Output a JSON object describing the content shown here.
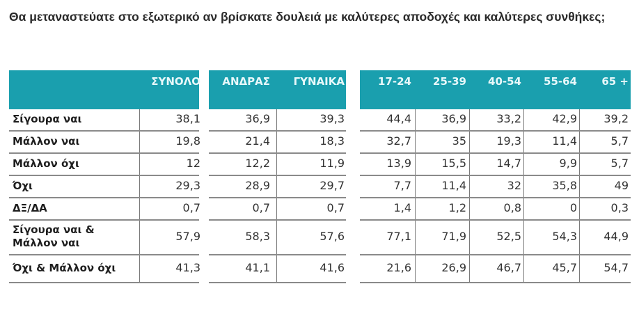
{
  "title": "Θα μεταναστεύατε στο εξωτερικό αν βρίσκατε δουλειά με καλύτερες αποδοχές και καλύτερες συνθήκες;",
  "header_color": "#1a9fae",
  "columns": [
    "ΣΥΝΟΛΟ",
    "ΑΝΔΡΑΣ",
    "ΓΥΝΑΙΚΑ",
    "17-24",
    "25-39",
    "40-54",
    "55-64",
    "65 +"
  ],
  "rows": [
    {
      "label": "Σίγουρα ναι",
      "values": [
        "38,1",
        "36,9",
        "39,3",
        "44,4",
        "36,9",
        "33,2",
        "42,9",
        "39,2"
      ]
    },
    {
      "label": "Μάλλον ναι",
      "values": [
        "19,8",
        "21,4",
        "18,3",
        "32,7",
        "35",
        "19,3",
        "11,4",
        "5,7"
      ]
    },
    {
      "label": "Μάλλον όχι",
      "values": [
        "12",
        "12,2",
        "11,9",
        "13,9",
        "15,5",
        "14,7",
        "9,9",
        "5,7"
      ]
    },
    {
      "label": "Όχι",
      "values": [
        "29,3",
        "28,9",
        "29,7",
        "7,7",
        "11,4",
        "32",
        "35,8",
        "49"
      ]
    },
    {
      "label": "ΔΞ/ΔΑ",
      "values": [
        "0,7",
        "0,7",
        "0,7",
        "1,4",
        "1,2",
        "0,8",
        "0",
        "0,3"
      ]
    },
    {
      "label": "Σίγουρα ναι & Μάλλον ναι",
      "values": [
        "57,9",
        "58,3",
        "57,6",
        "77,1",
        "71,9",
        "52,5",
        "54,3",
        "44,9"
      ]
    },
    {
      "label": "Όχι & Μάλλον όχι",
      "values": [
        "41,3",
        "41,1",
        "41,6",
        "21,6",
        "26,9",
        "46,7",
        "45,7",
        "54,7"
      ]
    }
  ],
  "chart_data": {
    "type": "table",
    "title": "Θα μεταναστεύατε στο εξωτερικό αν βρίσκατε δουλειά με καλύτερες αποδοχές και καλύτερες συνθήκες;",
    "columns": [
      "ΣΥΝΟΛΟ",
      "ΑΝΔΡΑΣ",
      "ΓΥΝΑΙΚΑ",
      "17-24",
      "25-39",
      "40-54",
      "55-64",
      "65 +"
    ],
    "categories": [
      "Σίγουρα ναι",
      "Μάλλον ναι",
      "Μάλλον όχι",
      "Όχι",
      "ΔΞ/ΔΑ",
      "Σίγουρα ναι & Μάλλον ναι",
      "Όχι & Μάλλον όχι"
    ],
    "series": [
      {
        "name": "ΣΥΝΟΛΟ",
        "values": [
          38.1,
          19.8,
          12,
          29.3,
          0.7,
          57.9,
          41.3
        ]
      },
      {
        "name": "ΑΝΔΡΑΣ",
        "values": [
          36.9,
          21.4,
          12.2,
          28.9,
          0.7,
          58.3,
          41.1
        ]
      },
      {
        "name": "ΓΥΝΑΙΚΑ",
        "values": [
          39.3,
          18.3,
          11.9,
          29.7,
          0.7,
          57.6,
          41.6
        ]
      },
      {
        "name": "17-24",
        "values": [
          44.4,
          32.7,
          13.9,
          7.7,
          1.4,
          77.1,
          21.6
        ]
      },
      {
        "name": "25-39",
        "values": [
          36.9,
          35,
          15.5,
          11.4,
          1.2,
          71.9,
          26.9
        ]
      },
      {
        "name": "40-54",
        "values": [
          33.2,
          19.3,
          14.7,
          32,
          0.8,
          52.5,
          46.7
        ]
      },
      {
        "name": "55-64",
        "values": [
          42.9,
          11.4,
          9.9,
          35.8,
          0,
          54.3,
          45.7
        ]
      },
      {
        "name": "65 +",
        "values": [
          39.2,
          5.7,
          5.7,
          49,
          0.3,
          44.9,
          54.7
        ]
      }
    ]
  }
}
